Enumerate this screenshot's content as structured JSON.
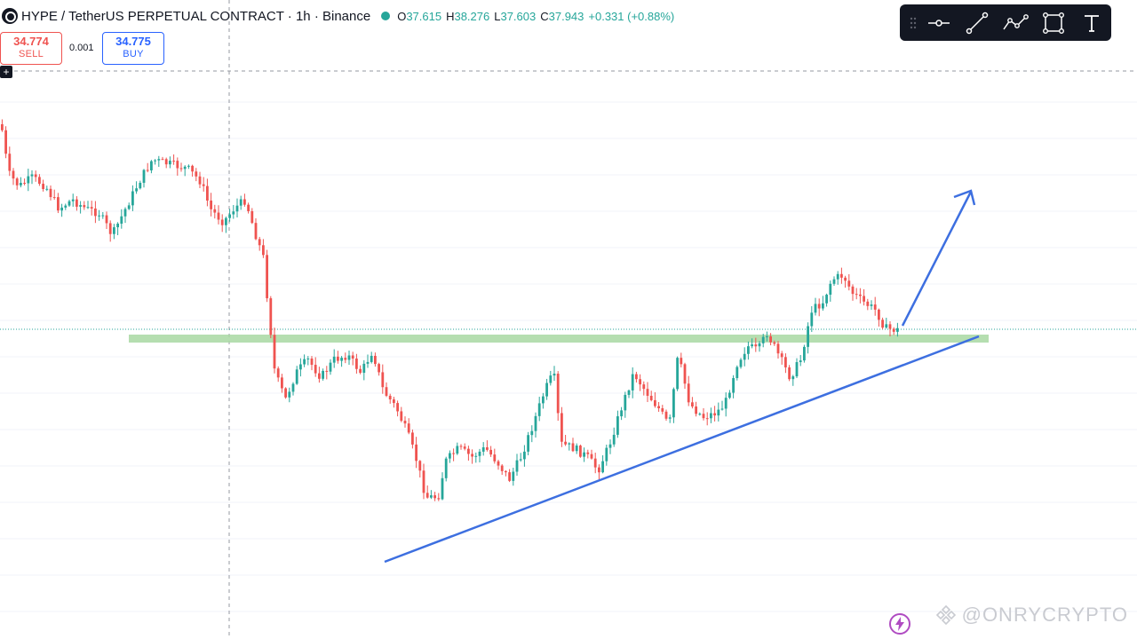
{
  "header": {
    "symbol": "HYPE / TetherUS PERPETUAL CONTRACT · 1h · Binance",
    "ohlc": [
      {
        "key": "O",
        "value": "37.615"
      },
      {
        "key": "H",
        "value": "38.276"
      },
      {
        "key": "L",
        "value": "37.603"
      },
      {
        "key": "C",
        "value": "37.943"
      }
    ],
    "change": "+0.331 (+0.88%)"
  },
  "trade": {
    "sell_price": "34.774",
    "sell_label": "SELL",
    "spread": "0.001",
    "buy_price": "34.775",
    "buy_label": "BUY"
  },
  "toolbar": {
    "tools": [
      "horizontal-ray-icon",
      "trend-line-icon",
      "path-icon",
      "rectangle-icon",
      "text-icon"
    ]
  },
  "watermark": {
    "text": "@ONRYCRYPTO"
  },
  "colors": {
    "up": "#26a69a",
    "down": "#ef5350",
    "trendline": "#3d6fe0",
    "support_zone": "#9fd39a",
    "toolbar_bg": "#131722"
  },
  "plus_icon": "+"
}
